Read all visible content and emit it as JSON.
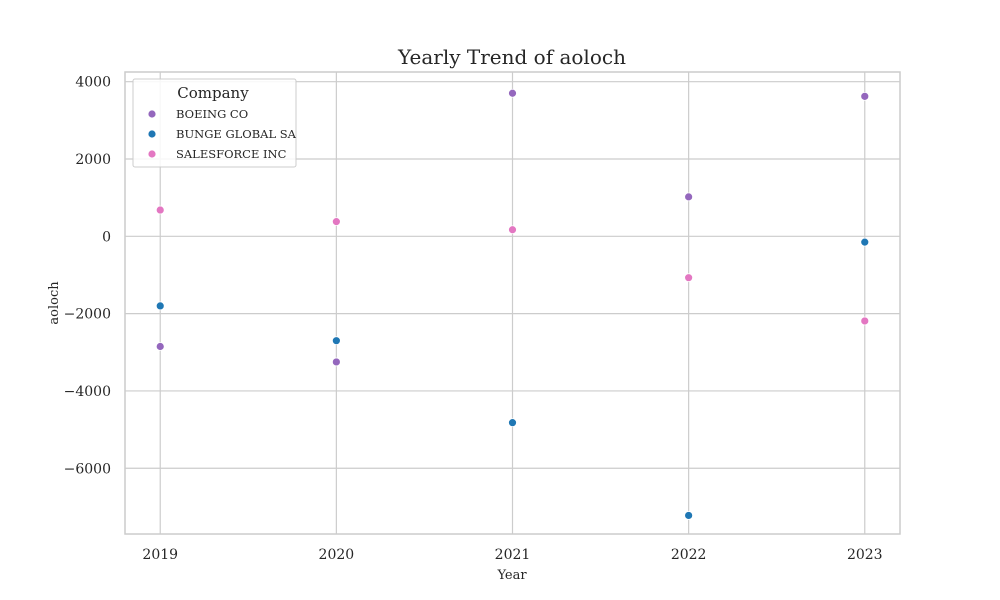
{
  "chart_data": {
    "type": "scatter",
    "title": "Yearly Trend of aoloch",
    "xlabel": "Year",
    "ylabel": "aoloch",
    "x": [
      "2019",
      "2020",
      "2021",
      "2022",
      "2023"
    ],
    "xlim": [
      2018.8,
      2023.2
    ],
    "ylim": [
      -7700,
      4250
    ],
    "yticks": [
      4000,
      2000,
      0,
      -2000,
      -4000,
      -6000
    ],
    "ytick_labels": [
      "4000",
      "2000",
      "0",
      "−2000",
      "−4000",
      "−6000"
    ],
    "grid": true,
    "legend": {
      "title": "Company",
      "placement": "top-left"
    },
    "series": [
      {
        "name": "BOEING CO",
        "color": "#9467bd",
        "values": [
          -2850,
          -3250,
          3700,
          1020,
          3620
        ]
      },
      {
        "name": "BUNGE GLOBAL SA",
        "color": "#1f77b4",
        "values": [
          -1800,
          -2700,
          -4820,
          -7220,
          -150
        ]
      },
      {
        "name": "SALESFORCE INC",
        "color": "#e377c2",
        "values": [
          680,
          380,
          170,
          -1070,
          -2190
        ]
      }
    ]
  }
}
